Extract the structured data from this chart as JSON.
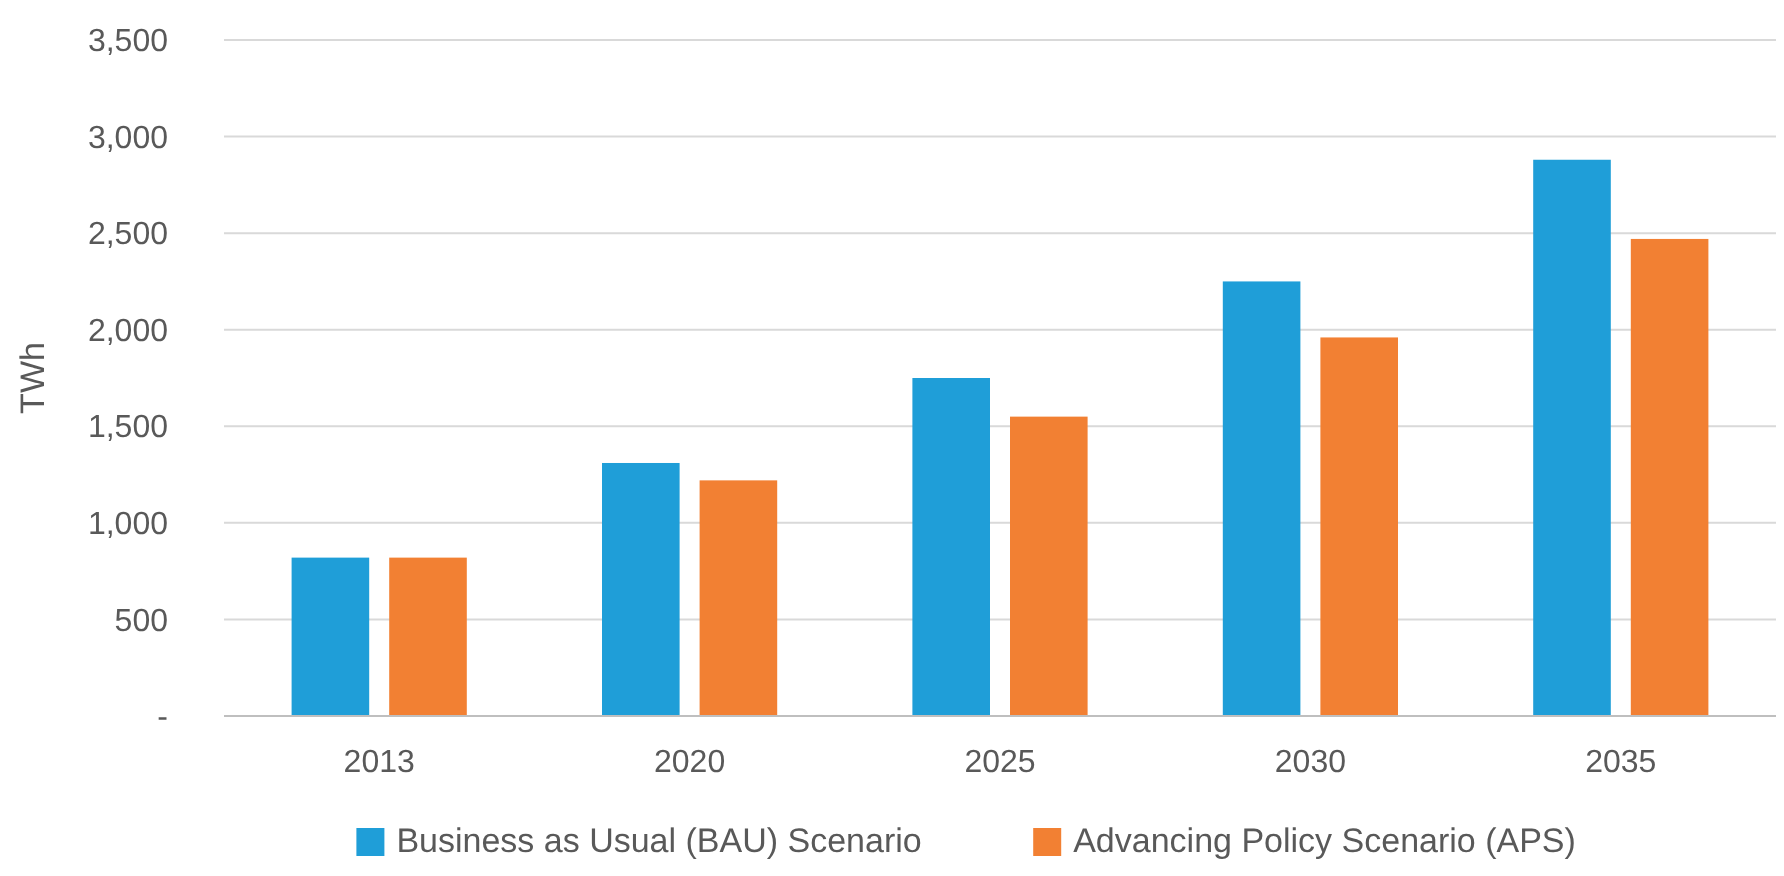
{
  "chart_data": {
    "type": "bar",
    "ylabel": "TWh",
    "categories": [
      "2013",
      "2020",
      "2025",
      "2030",
      "2035"
    ],
    "series": [
      {
        "name": "Business as Usual (BAU) Scenario",
        "color": "#1f9ed8",
        "values": [
          820,
          1310,
          1750,
          2250,
          2880
        ]
      },
      {
        "name": "Advancing Policy Scenario (APS)",
        "color": "#f28033",
        "values": [
          820,
          1220,
          1550,
          1960,
          2470
        ]
      }
    ],
    "ylim": [
      0,
      3500
    ],
    "yticks": [
      {
        "value": 0,
        "label": "-"
      },
      {
        "value": 500,
        "label": "500"
      },
      {
        "value": 1000,
        "label": "1,000"
      },
      {
        "value": 1500,
        "label": "1,500"
      },
      {
        "value": 2000,
        "label": "2,000"
      },
      {
        "value": 2500,
        "label": "2,500"
      },
      {
        "value": 3000,
        "label": "3,000"
      },
      {
        "value": 3500,
        "label": "3,500"
      }
    ],
    "grid": "y",
    "legend": "bottom"
  }
}
